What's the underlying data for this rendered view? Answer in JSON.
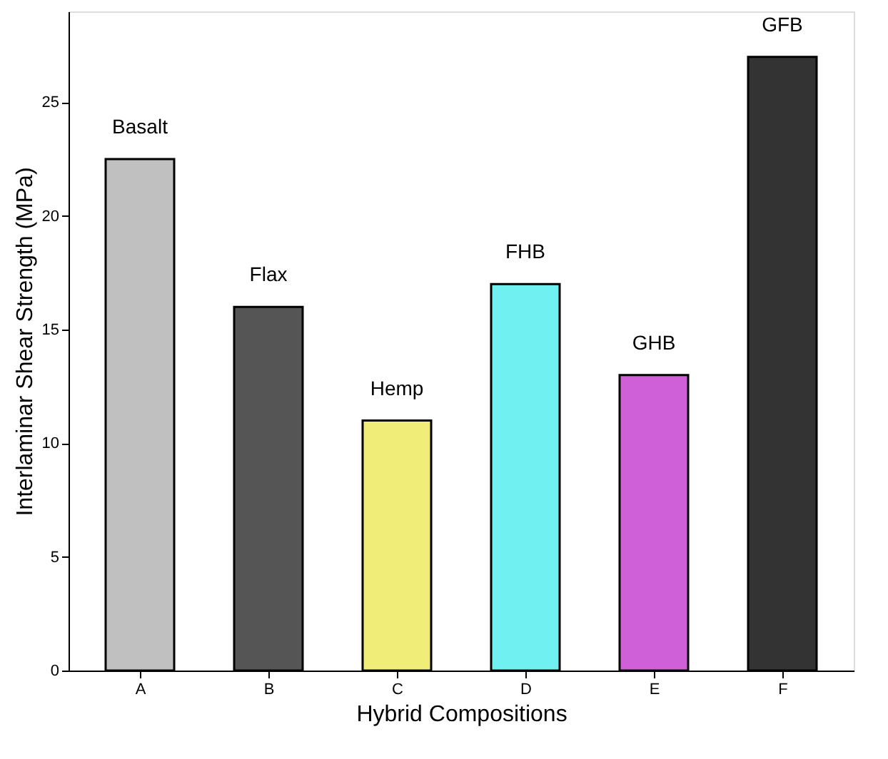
{
  "chart_data": {
    "type": "bar",
    "xlabel": "Hybrid Compositions",
    "ylabel": "Interlaminar Shear Strength (MPa)",
    "categories": [
      "A",
      "B",
      "C",
      "D",
      "E",
      "F"
    ],
    "values": [
      22.5,
      16,
      11,
      17,
      13,
      27
    ],
    "colors": [
      "#c0c0c0",
      "#555555",
      "#f0ee78",
      "#70f0f0",
      "#d060d8",
      "#333333"
    ],
    "ylim": [
      0,
      29
    ],
    "yticks": [
      0,
      5,
      10,
      15,
      20,
      25
    ],
    "grid": false,
    "annotations": [
      {
        "text": "Basalt",
        "x": "A",
        "y": 22.5
      },
      {
        "text": "Flax",
        "x": "B",
        "y": 16
      },
      {
        "text": "Hemp",
        "x": "C",
        "y": 11
      },
      {
        "text": "FHB",
        "x": "D",
        "y": 17
      },
      {
        "text": "GHB",
        "x": "E",
        "y": 13
      },
      {
        "text": "GFB",
        "x": "F",
        "y": 27
      }
    ]
  }
}
